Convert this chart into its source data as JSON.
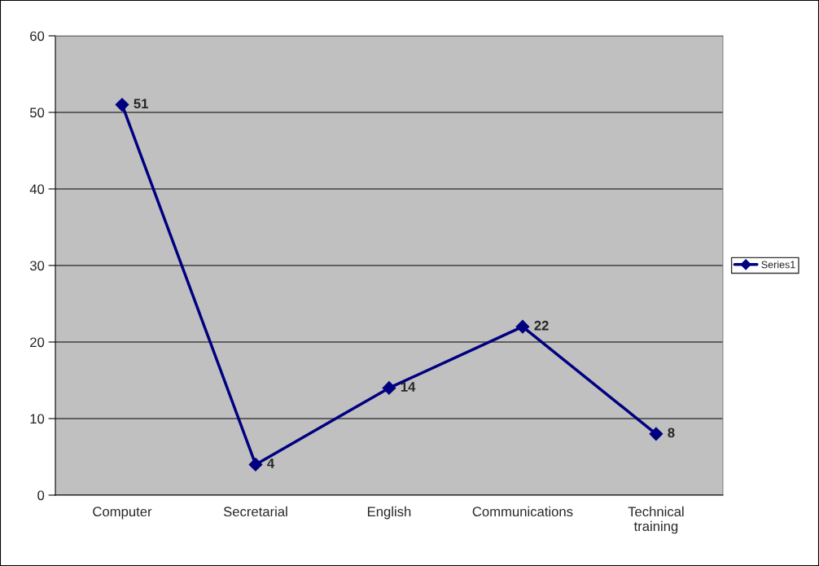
{
  "chart_data": {
    "type": "line",
    "categories": [
      "Computer",
      "Secretarial",
      "English",
      "Communications",
      "Technical\ntraining"
    ],
    "series": [
      {
        "name": "Series1",
        "color": "#000080",
        "values": [
          51,
          4,
          14,
          22,
          8
        ]
      }
    ],
    "ylim": [
      0,
      60
    ],
    "yticks": [
      0,
      10,
      20,
      30,
      40,
      50,
      60
    ],
    "grid": "y",
    "legend": "right",
    "marker": "diamond",
    "line_style": "solid",
    "data_labels": true
  }
}
